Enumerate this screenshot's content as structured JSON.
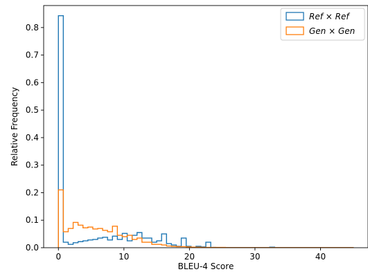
{
  "chart_data": {
    "type": "histogram",
    "xlabel": "BLEU-4 Score",
    "ylabel": "Relative Frequency",
    "xlim": [
      -2.25,
      47.25
    ],
    "ylim": [
      0,
      0.88
    ],
    "xticks": [
      0,
      10,
      20,
      30,
      40
    ],
    "yticks": [
      0.0,
      0.1,
      0.2,
      0.3,
      0.4,
      0.5,
      0.6,
      0.7,
      0.8
    ],
    "grid": false,
    "legend_position": "top-right",
    "bin_width": 0.75,
    "series": [
      {
        "name": "Ref × Ref",
        "color": "#1f77b4",
        "bin_start": 0,
        "values": [
          0.843,
          0.02,
          0.012,
          0.018,
          0.022,
          0.025,
          0.028,
          0.03,
          0.035,
          0.038,
          0.028,
          0.042,
          0.03,
          0.052,
          0.025,
          0.045,
          0.055,
          0.035,
          0.035,
          0.02,
          0.025,
          0.05,
          0.015,
          0.01,
          0.005,
          0.035,
          0.005,
          0.002,
          0.005,
          0.003,
          0.02,
          0.001,
          0.0005,
          0.0005,
          0.0005,
          0.0005,
          0.0005,
          0.0005,
          0.0005,
          0.0005,
          0.0005,
          0.0005,
          0.0005,
          0.002,
          0.0005,
          0.0005,
          0.0005,
          0.0005,
          0.0005,
          0.0005,
          0.0005,
          0.0005,
          0.0005,
          0.0005,
          0.0005,
          0.0005,
          0.0005,
          0.0005,
          0.0005,
          0.0005
        ]
      },
      {
        "name": "Gen × Gen",
        "color": "#ff7f0e",
        "bin_start": 0,
        "values": [
          0.21,
          0.058,
          0.07,
          0.092,
          0.082,
          0.072,
          0.075,
          0.068,
          0.07,
          0.063,
          0.058,
          0.078,
          0.045,
          0.04,
          0.045,
          0.03,
          0.035,
          0.02,
          0.02,
          0.012,
          0.012,
          0.01,
          0.006,
          0.005,
          0.004,
          0.004,
          0.003,
          0.002,
          0.002,
          0.0015,
          0.001,
          0.001,
          0.001,
          0.001,
          0.0005,
          0.0005,
          0.0005,
          0.0005,
          0.0005,
          0.0005,
          0.0005,
          0.0005,
          0.0005,
          0.0005,
          0.0005,
          0.0005,
          0.0005,
          0.0005,
          0.0005,
          0.0005,
          0.0005,
          0.0005,
          0.0005,
          0.0005,
          0.0005,
          0.0005,
          0.0005,
          0.0005,
          0.0005,
          0.0005
        ]
      }
    ]
  }
}
